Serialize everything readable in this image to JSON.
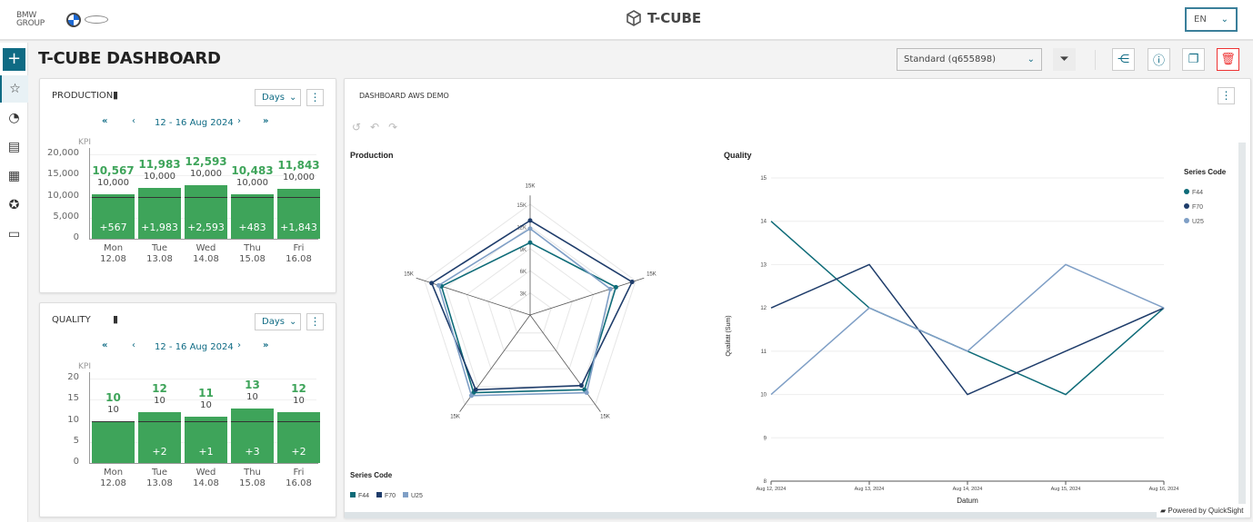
{
  "header": {
    "brand_text": "BMW GROUP",
    "app_title": "T-CUBE",
    "language": "EN"
  },
  "page": {
    "title": "T-CUBE DASHBOARD",
    "view_select": "Standard (q655898)"
  },
  "sidebar": {
    "items": [
      "add",
      "favorites",
      "performance",
      "reports",
      "dashboards",
      "network",
      "catalog"
    ]
  },
  "production": {
    "title": "PRODUCTION",
    "period_unit": "Days",
    "date_range": "12 - 16 Aug 2024",
    "kpi_label": "KPI",
    "yticks": [
      "20,000",
      "15,000",
      "10,000",
      "5,000",
      "0"
    ],
    "ymax": 20000,
    "days": [
      {
        "day": "Mon",
        "date": "12.08",
        "value": 10567,
        "value_label": "10,567",
        "target_label": "10,000",
        "delta": "+567"
      },
      {
        "day": "Tue",
        "date": "13.08",
        "value": 11983,
        "value_label": "11,983",
        "target_label": "10,000",
        "delta": "+1,983"
      },
      {
        "day": "Wed",
        "date": "14.08",
        "value": 12593,
        "value_label": "12,593",
        "target_label": "10,000",
        "delta": "+2,593"
      },
      {
        "day": "Thu",
        "date": "15.08",
        "value": 10483,
        "value_label": "10,483",
        "target_label": "10,000",
        "delta": "+483"
      },
      {
        "day": "Fri",
        "date": "16.08",
        "value": 11843,
        "value_label": "11,843",
        "target_label": "10,000",
        "delta": "+1,843"
      }
    ],
    "target": 10000
  },
  "quality": {
    "title": "QUALITY",
    "period_unit": "Days",
    "date_range": "12 - 16 Aug 2024",
    "kpi_label": "KPI",
    "yticks": [
      "20",
      "15",
      "10",
      "5",
      "0"
    ],
    "ymax": 20,
    "days": [
      {
        "day": "Mon",
        "date": "12.08",
        "value": 10,
        "value_label": "10",
        "target_label": "10",
        "delta": ""
      },
      {
        "day": "Tue",
        "date": "13.08",
        "value": 12,
        "value_label": "12",
        "target_label": "10",
        "delta": "+2"
      },
      {
        "day": "Wed",
        "date": "14.08",
        "value": 11,
        "value_label": "11",
        "target_label": "10",
        "delta": "+1"
      },
      {
        "day": "Thu",
        "date": "15.08",
        "value": 13,
        "value_label": "13",
        "target_label": "10",
        "delta": "+3"
      },
      {
        "day": "Fri",
        "date": "16.08",
        "value": 12,
        "value_label": "12",
        "target_label": "10",
        "delta": "+2"
      }
    ],
    "target": 10
  },
  "qs": {
    "title": "DASHBOARD AWS DEMO",
    "powered": "Powered by QuickSight"
  },
  "colors": {
    "F44": "#0e6b78",
    "F70": "#1f3d6b",
    "U25": "#7f9fc6",
    "accent": "#0f6b84",
    "green": "#3ea45a"
  },
  "chart_data": [
    {
      "type": "radar",
      "title": "Production",
      "legend_title": "Series Code",
      "legend": [
        "F44",
        "F70",
        "U25"
      ],
      "axis_max_label": "15K",
      "rings": [
        "3K",
        "6K",
        "9K",
        "12K",
        "15K"
      ],
      "series": [
        {
          "name": "F44",
          "values": [
            9800,
            12200,
            12500,
            13000,
            12600
          ]
        },
        {
          "name": "F70",
          "values": [
            12800,
            14500,
            11800,
            12500,
            14000
          ]
        },
        {
          "name": "U25",
          "values": [
            11700,
            11400,
            13000,
            13500,
            13000
          ]
        }
      ]
    },
    {
      "type": "line",
      "title": "Quality",
      "xlabel": "Datum",
      "ylabel": "Qualität (Sum)",
      "ylim": [
        8,
        15
      ],
      "legend_title": "Series Code",
      "legend": [
        "F44",
        "F70",
        "U25"
      ],
      "x": [
        "Aug 12, 2024",
        "Aug 13, 2024",
        "Aug 14, 2024",
        "Aug 15, 2024",
        "Aug 16, 2024"
      ],
      "yticks": [
        "8",
        "9",
        "10",
        "11",
        "12",
        "13",
        "14",
        "15"
      ],
      "series": [
        {
          "name": "F44",
          "values": [
            14,
            12,
            11,
            10,
            12
          ]
        },
        {
          "name": "F70",
          "values": [
            12,
            13,
            10,
            11,
            12
          ]
        },
        {
          "name": "U25",
          "values": [
            10,
            12,
            11,
            13,
            12
          ]
        }
      ]
    }
  ]
}
